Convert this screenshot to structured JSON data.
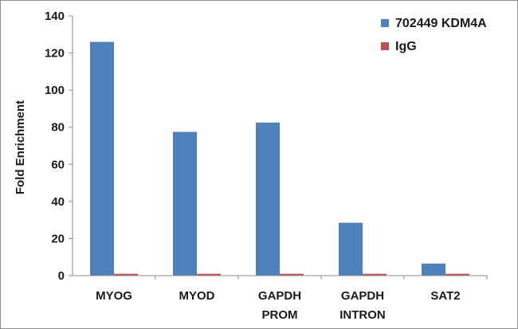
{
  "chart_data": {
    "type": "bar",
    "categories": [
      [
        "MYOG"
      ],
      [
        "MYOD"
      ],
      [
        "GAPDH",
        "PROM"
      ],
      [
        "GAPDH",
        "INTRON"
      ],
      [
        "SAT2"
      ]
    ],
    "series": [
      {
        "name": "702449 KDM4A",
        "color": "#4f81bd",
        "values": [
          126,
          77.5,
          82.5,
          28.5,
          6.5
        ]
      },
      {
        "name": "IgG",
        "color": "#c0504d",
        "values": [
          1,
          1,
          1,
          1,
          1
        ]
      }
    ],
    "ylabel": "Fold Enrichment",
    "xlabel": "",
    "ylim": [
      0,
      140
    ],
    "yticks": [
      0,
      20,
      40,
      60,
      80,
      100,
      120,
      140
    ],
    "grid": false,
    "legend_position": "top-right"
  }
}
